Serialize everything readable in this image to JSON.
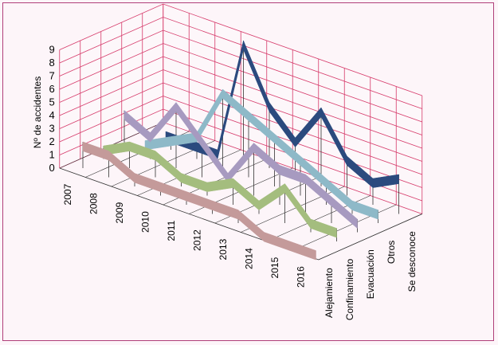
{
  "chart_data": {
    "type": "line",
    "title": "",
    "ylabel": "Nº de accidentes",
    "xlabel": "",
    "ylim": [
      0,
      9
    ],
    "yticks": [
      "0",
      "1",
      "2",
      "3",
      "4",
      "5",
      "6",
      "7",
      "8",
      "9"
    ],
    "x": [
      "2007",
      "2008",
      "2009",
      "2010",
      "2011",
      "2012",
      "2013",
      "2014",
      "2015",
      "2016"
    ],
    "categories": [
      "Alejamiento",
      "Confinamiento",
      "Evacuación",
      "Otros",
      "Se desconoce"
    ],
    "series": [
      {
        "name": "Alejamiento",
        "color": "#c49a9a",
        "values": [
          2,
          2,
          1,
          1,
          1,
          1,
          1,
          0,
          0,
          0
        ]
      },
      {
        "name": "Confinamiento",
        "color": "#a4bd7e",
        "values": [
          1,
          2,
          2,
          1,
          1,
          2,
          1,
          3,
          1,
          1
        ]
      },
      {
        "name": "Evacuación",
        "color": "#a79ac0",
        "values": [
          3,
          2,
          5,
          3,
          1,
          4,
          3,
          3,
          2,
          1
        ]
      },
      {
        "name": "Otros",
        "color": "#8eb9c8",
        "values": [
          0,
          1,
          2,
          6,
          5,
          4,
          3,
          2,
          1,
          1
        ]
      },
      {
        "name": "Se desconoce",
        "color": "#2b4a7e",
        "values": [
          0,
          0,
          0,
          9,
          5,
          3,
          6,
          3,
          2,
          3
        ]
      }
    ],
    "grid": true,
    "legend": "none",
    "projection": "3d"
  }
}
